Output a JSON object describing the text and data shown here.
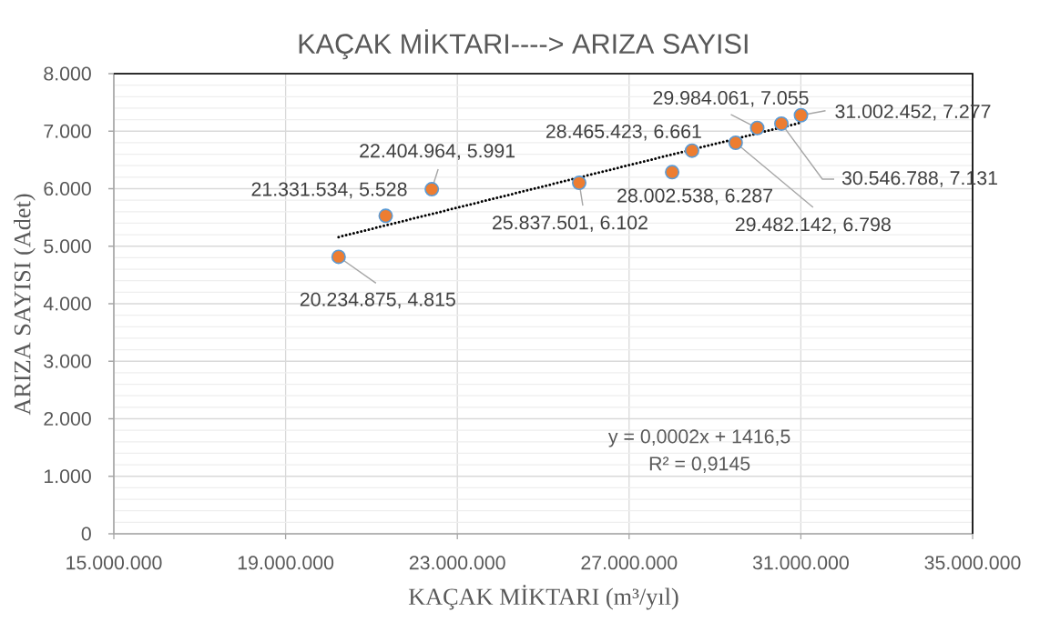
{
  "chart_data": {
    "type": "scatter",
    "title": "KAÇAK MİKTARI----> ARIZA SAYISI",
    "xlabel": "KAÇAK MİKTARI (m³/yıl)",
    "ylabel": "ARIZA SAYISI (Adet)",
    "xlim": [
      15000000,
      35000000
    ],
    "xticks": [
      {
        "value": 15000000,
        "label": "15.000.000"
      },
      {
        "value": 19000000,
        "label": "19.000.000"
      },
      {
        "value": 23000000,
        "label": "23.000.000"
      },
      {
        "value": 27000000,
        "label": "27.000.000"
      },
      {
        "value": 31000000,
        "label": "31.000.000"
      },
      {
        "value": 35000000,
        "label": "35.000.000"
      }
    ],
    "ylim": [
      0,
      8000
    ],
    "yticks": [
      0,
      {
        "value": 1000,
        "label": "1.000"
      },
      {
        "value": 2000,
        "label": "2.000"
      },
      {
        "value": 3000,
        "label": "3.000"
      },
      {
        "value": 4000,
        "label": "4.000"
      },
      {
        "value": 5000,
        "label": "5.000"
      },
      {
        "value": 6000,
        "label": "6.000"
      },
      {
        "value": 7000,
        "label": "7.000"
      },
      {
        "value": 8000,
        "label": "8.000"
      }
    ],
    "grid": true,
    "marker": "circle",
    "series": [
      {
        "color": "#ed7d31",
        "x": [
          20234875,
          21331534,
          22404964,
          25837501,
          28002538,
          28465423,
          29482142,
          29984061,
          30546788,
          31002452
        ],
        "values": [
          4815,
          5528,
          5991,
          6102,
          6287,
          6661,
          6798,
          7055,
          7131,
          7277
        ],
        "value_labels": [
          "20.234.875, 4.815",
          "21.331.534, 5.528",
          "22.404.964, 5.991",
          "25.837.501, 6.102",
          "28.002.538, 6.287",
          "28.465.423, 6.661",
          "29.482.142, 6.798",
          "29.984.061, 7.055",
          "30.546.788, 7.131",
          "31.002.452, 7.277"
        ]
      },
      {
        "type": "line",
        "color": "#000000",
        "line_style": "dotted",
        "marker": "none",
        "x": [
          20234875,
          31002452
        ],
        "values": [
          5160,
          7150
        ]
      }
    ],
    "annotations": [
      "y = 0,0002x + 1416,5",
      "R² = 0,9145"
    ]
  }
}
